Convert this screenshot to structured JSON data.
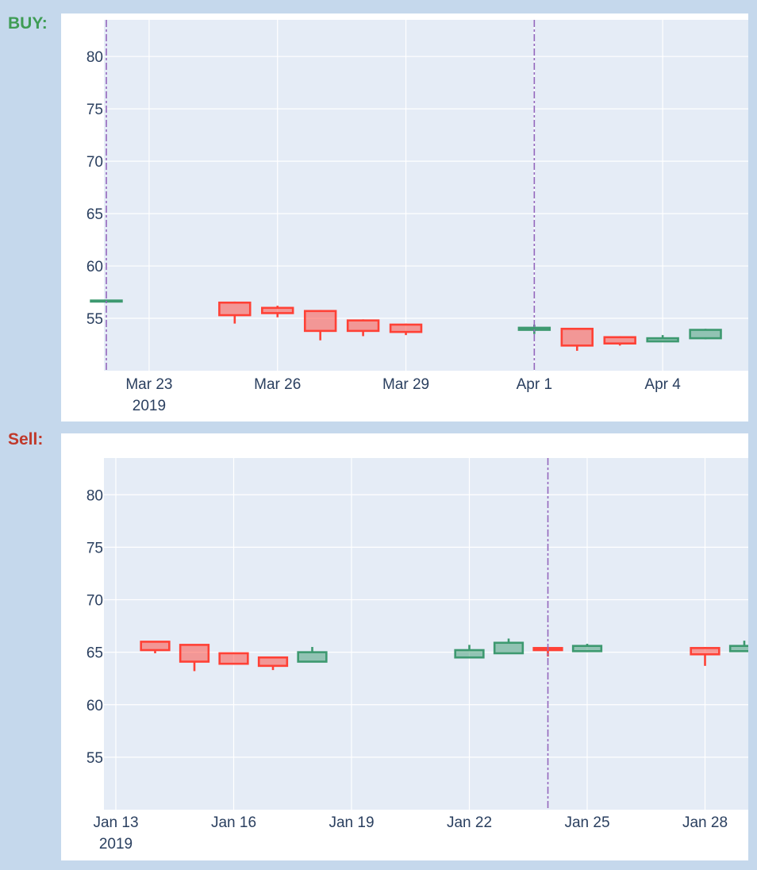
{
  "labels": {
    "buy": "BUY:",
    "sell": "Sell:"
  },
  "colors": {
    "buy_label": "#3f9c55",
    "sell_label": "#c0392b",
    "plot_bg": "#e5ecf6",
    "grid": "#ffffff",
    "increasing": "#3d9970",
    "decreasing": "#ff4136",
    "marker_line": "#9467bd",
    "tick_text": "#2a3f5f"
  },
  "chart_data": [
    {
      "id": "buy",
      "type": "candlestick",
      "title": "",
      "xlabel": "",
      "ylabel": "",
      "grid": true,
      "ylim": [
        50,
        83.5
      ],
      "xlim": [
        "2019-03-22",
        "2019-04-06"
      ],
      "yticks": [
        55,
        60,
        65,
        70,
        75,
        80
      ],
      "xticks": [
        {
          "date": "2019-03-23",
          "label": "Mar 23",
          "sublabel": "2019"
        },
        {
          "date": "2019-03-26",
          "label": "Mar 26",
          "sublabel": ""
        },
        {
          "date": "2019-03-29",
          "label": "Mar 29",
          "sublabel": ""
        },
        {
          "date": "2019-04-01",
          "label": "Apr 1",
          "sublabel": ""
        },
        {
          "date": "2019-04-04",
          "label": "Apr 4",
          "sublabel": ""
        }
      ],
      "vlines": [
        "2019-03-22",
        "2019-04-01"
      ],
      "candles": [
        {
          "date": "2019-03-22",
          "open": 56.6,
          "high": 56.7,
          "low": 56.5,
          "close": 56.7
        },
        {
          "date": "2019-03-25",
          "open": 56.5,
          "high": 56.6,
          "low": 54.5,
          "close": 55.3
        },
        {
          "date": "2019-03-26",
          "open": 56.0,
          "high": 56.2,
          "low": 55.1,
          "close": 55.5
        },
        {
          "date": "2019-03-27",
          "open": 55.7,
          "high": 55.8,
          "low": 52.9,
          "close": 53.8
        },
        {
          "date": "2019-03-28",
          "open": 54.8,
          "high": 54.9,
          "low": 53.3,
          "close": 53.8
        },
        {
          "date": "2019-03-29",
          "open": 54.4,
          "high": 54.5,
          "low": 53.4,
          "close": 53.7
        },
        {
          "date": "2019-04-01",
          "open": 53.9,
          "high": 54.4,
          "low": 53.5,
          "close": 54.1
        },
        {
          "date": "2019-04-02",
          "open": 54.0,
          "high": 54.0,
          "low": 51.9,
          "close": 52.4
        },
        {
          "date": "2019-04-03",
          "open": 53.2,
          "high": 53.3,
          "low": 52.4,
          "close": 52.6
        },
        {
          "date": "2019-04-04",
          "open": 52.8,
          "high": 53.4,
          "low": 52.8,
          "close": 53.1
        },
        {
          "date": "2019-04-05",
          "open": 53.1,
          "high": 54.0,
          "low": 53.0,
          "close": 53.9
        }
      ]
    },
    {
      "id": "sell",
      "type": "candlestick",
      "title": "",
      "xlabel": "",
      "ylabel": "",
      "grid": true,
      "ylim": [
        50,
        83.5
      ],
      "xlim": [
        "2019-01-13",
        "2019-01-29"
      ],
      "yticks": [
        55,
        60,
        65,
        70,
        75,
        80
      ],
      "xticks": [
        {
          "date": "2019-01-13",
          "label": "Jan 13",
          "sublabel": "2019"
        },
        {
          "date": "2019-01-16",
          "label": "Jan 16",
          "sublabel": ""
        },
        {
          "date": "2019-01-19",
          "label": "Jan 19",
          "sublabel": ""
        },
        {
          "date": "2019-01-22",
          "label": "Jan 22",
          "sublabel": ""
        },
        {
          "date": "2019-01-25",
          "label": "Jan 25",
          "sublabel": ""
        },
        {
          "date": "2019-01-28",
          "label": "Jan 28",
          "sublabel": ""
        }
      ],
      "vlines": [
        "2019-01-24"
      ],
      "candles": [
        {
          "date": "2019-01-14",
          "open": 66.0,
          "high": 66.0,
          "low": 64.9,
          "close": 65.2
        },
        {
          "date": "2019-01-15",
          "open": 65.7,
          "high": 65.7,
          "low": 63.2,
          "close": 64.1
        },
        {
          "date": "2019-01-16",
          "open": 64.9,
          "high": 64.9,
          "low": 63.8,
          "close": 63.9
        },
        {
          "date": "2019-01-17",
          "open": 64.5,
          "high": 64.5,
          "low": 63.3,
          "close": 63.7
        },
        {
          "date": "2019-01-18",
          "open": 64.1,
          "high": 65.5,
          "low": 64.1,
          "close": 65.0
        },
        {
          "date": "2019-01-22",
          "open": 64.5,
          "high": 65.7,
          "low": 64.5,
          "close": 65.2
        },
        {
          "date": "2019-01-23",
          "open": 64.9,
          "high": 66.3,
          "low": 64.9,
          "close": 65.9
        },
        {
          "date": "2019-01-24",
          "open": 65.4,
          "high": 65.4,
          "low": 64.6,
          "close": 65.2
        },
        {
          "date": "2019-01-25",
          "open": 65.1,
          "high": 65.8,
          "low": 65.1,
          "close": 65.6
        },
        {
          "date": "2019-01-28",
          "open": 65.4,
          "high": 65.5,
          "low": 63.7,
          "close": 64.8
        },
        {
          "date": "2019-01-29",
          "open": 65.1,
          "high": 66.1,
          "low": 65.1,
          "close": 65.6
        }
      ]
    }
  ]
}
